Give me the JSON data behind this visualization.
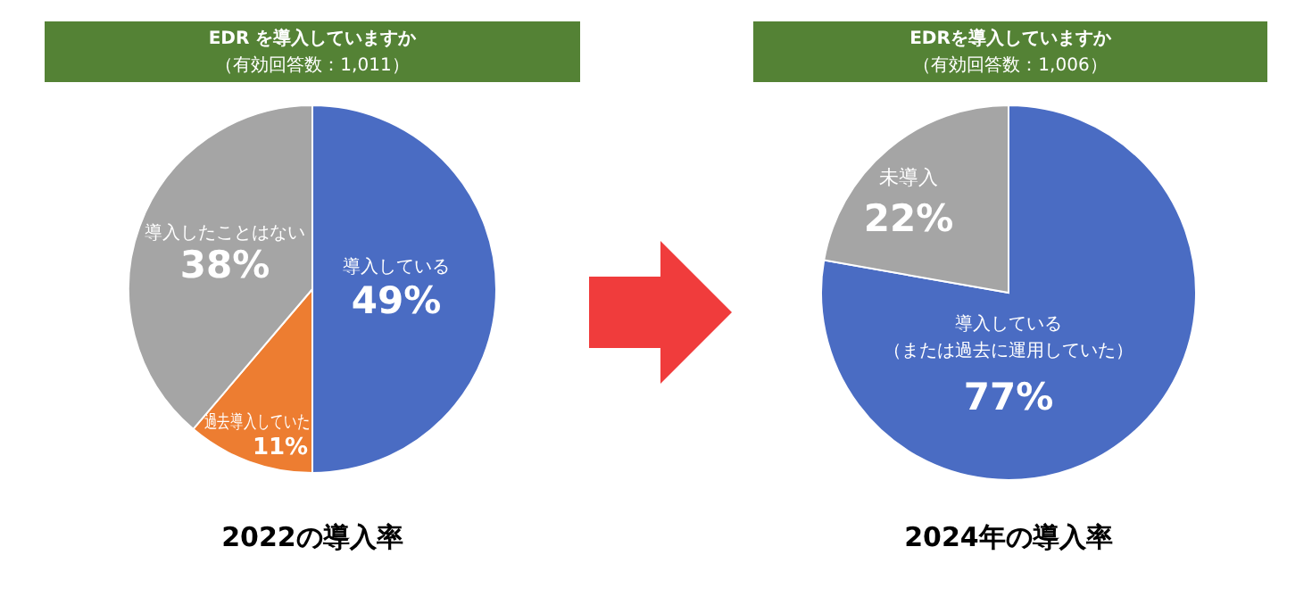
{
  "chart_data": [
    {
      "type": "pie",
      "title": "EDR を導入していますか",
      "subtitle": "（有効回答数：1,011）",
      "xlabel": "2022の導入率",
      "categories": [
        "導入している",
        "過去導入していた",
        "導入したことはない"
      ],
      "values": [
        49,
        11,
        38
      ],
      "value_labels": [
        "49%",
        "11%",
        "38%"
      ],
      "colors": [
        "#4a6cc3",
        "#ed7d31",
        "#a5a5a5"
      ]
    },
    {
      "type": "pie",
      "title": "EDRを導入していますか",
      "subtitle": "（有効回答数：1,006）",
      "xlabel": "2024年の導入率",
      "categories": [
        "導入している（または過去に運用していた）",
        "未導入"
      ],
      "values": [
        77,
        22
      ],
      "value_labels": [
        "77%",
        "22%"
      ],
      "colors": [
        "#4a6cc3",
        "#a5a5a5"
      ]
    }
  ]
}
